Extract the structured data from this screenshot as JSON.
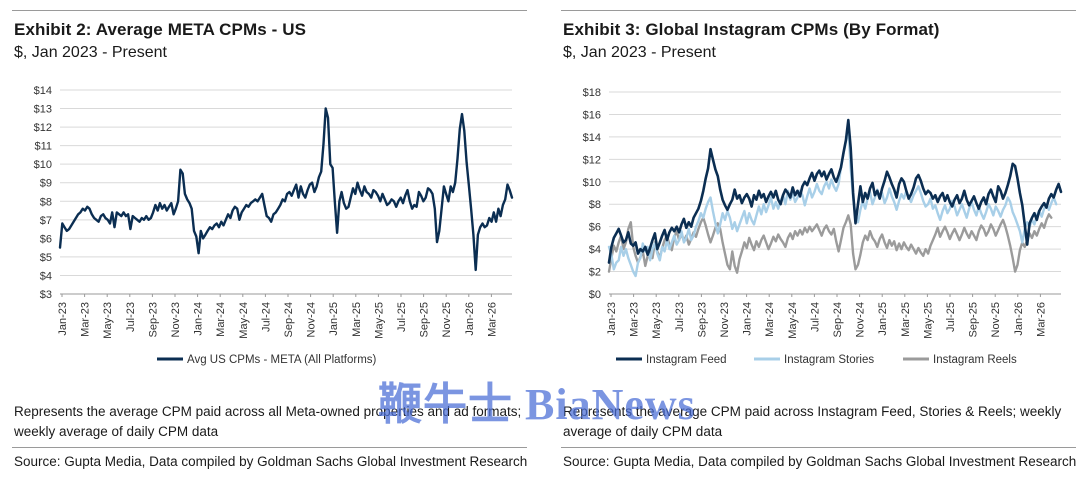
{
  "exhibits": [
    {
      "title": "Exhibit 2: Average META CPMs - US",
      "subtitle": "$, Jan 2023 - Present",
      "note": "Represents the average CPM paid across all Meta-owned properties and ad formats; weekly average of daily CPM data",
      "source": "Source: Gupta Media, Data compiled by Goldman Sachs Global Investment Research"
    },
    {
      "title": "Exhibit 3: Global Instagram CPMs (By Format)",
      "subtitle": "$, Jan 2023 - Present",
      "note": "Represents the average CPM paid across Instagram Feed, Stories & Reels; weekly average of daily CPM data",
      "source": "Source: Gupta Media, Data compiled by Goldman Sachs Global Investment Research"
    }
  ],
  "watermark": "鞭牛士 BiaNews",
  "chart_data": [
    {
      "type": "line",
      "ylim": [
        3,
        14
      ],
      "yticks": [
        "$3",
        "$4",
        "$5",
        "$6",
        "$7",
        "$8",
        "$9",
        "$10",
        "$11",
        "$12",
        "$13",
        "$14"
      ],
      "xticks": [
        "Jan-23",
        "Mar-23",
        "May-23",
        "Jul-23",
        "Sep-23",
        "Nov-23",
        "Jan-24",
        "Mar-24",
        "May-24",
        "Jul-24",
        "Sep-24",
        "Nov-24",
        "Jan-25",
        "Mar-25",
        "May-25",
        "Jul-25",
        "Sep-25",
        "Nov-25",
        "Jan-26",
        "Mar-26"
      ],
      "x_start": "2023-01",
      "x_step": "weekly",
      "grid": "horizontal",
      "legend_position": "bottom",
      "series": [
        {
          "name": "Avg US CPMs - META (All Platforms)",
          "color": "#0b2e52",
          "values": [
            5.5,
            6.8,
            6.6,
            6.4,
            6.5,
            6.7,
            6.9,
            7.1,
            7.3,
            7.4,
            7.6,
            7.5,
            7.7,
            7.6,
            7.3,
            7.1,
            7.0,
            6.9,
            7.2,
            7.3,
            7.1,
            7.0,
            6.8,
            7.4,
            6.6,
            7.4,
            7.3,
            7.2,
            7.4,
            7.2,
            7.3,
            6.5,
            7.2,
            7.1,
            7.0,
            6.9,
            7.1,
            7.0,
            7.2,
            7.0,
            7.1,
            7.4,
            7.8,
            7.5,
            7.9,
            7.6,
            7.8,
            7.5,
            7.7,
            7.9,
            7.3,
            7.6,
            8.0,
            9.7,
            9.5,
            8.4,
            8.1,
            7.9,
            7.6,
            6.4,
            6.1,
            5.2,
            6.4,
            6.0,
            6.2,
            6.4,
            6.6,
            6.5,
            6.7,
            6.8,
            6.6,
            6.9,
            6.7,
            7.0,
            7.3,
            7.1,
            7.5,
            7.7,
            7.6,
            7.0,
            7.4,
            7.6,
            7.8,
            7.7,
            7.9,
            8.0,
            8.1,
            8.0,
            8.2,
            8.4,
            7.8,
            7.2,
            7.1,
            6.9,
            7.3,
            7.4,
            7.6,
            7.8,
            8.1,
            8.0,
            8.4,
            8.5,
            8.3,
            8.6,
            8.9,
            8.2,
            8.8,
            8.4,
            8.2,
            8.6,
            8.9,
            9.0,
            8.5,
            8.8,
            9.3,
            9.6,
            11.1,
            13.0,
            12.5,
            10.0,
            9.8,
            8.0,
            6.3,
            8.0,
            8.5,
            7.9,
            7.6,
            7.7,
            8.2,
            8.7,
            8.4,
            9.0,
            8.6,
            8.3,
            8.8,
            8.5,
            8.4,
            8.2,
            8.6,
            8.5,
            8.3,
            8.0,
            8.4,
            8.1,
            7.8,
            7.9,
            8.1,
            8.0,
            7.7,
            8.0,
            8.2,
            7.9,
            8.3,
            8.6,
            8.0,
            7.6,
            7.8,
            7.7,
            8.5,
            8.3,
            8.0,
            8.2,
            8.7,
            8.6,
            8.4,
            7.6,
            5.8,
            6.4,
            7.6,
            8.8,
            8.4,
            8.0,
            8.8,
            8.5,
            9.0,
            10.3,
            11.9,
            12.7,
            11.8,
            10.1,
            8.9,
            7.6,
            6.2,
            4.3,
            6.2,
            6.6,
            6.8,
            6.6,
            6.7,
            7.1,
            6.9,
            7.4,
            6.9,
            7.6,
            7.2,
            7.8,
            8.1,
            8.9,
            8.6,
            8.2
          ]
        }
      ]
    },
    {
      "type": "line",
      "ylim": [
        0,
        18
      ],
      "yticks": [
        "$0",
        "$2",
        "$4",
        "$6",
        "$8",
        "$10",
        "$12",
        "$14",
        "$16",
        "$18"
      ],
      "xticks": [
        "Jan-23",
        "Mar-23",
        "May-23",
        "Jul-23",
        "Sep-23",
        "Nov-23",
        "Jan-24",
        "Mar-24",
        "May-24",
        "Jul-24",
        "Sep-24",
        "Nov-24",
        "Jan-25",
        "Mar-25",
        "May-25",
        "Jul-25",
        "Sep-25",
        "Nov-25",
        "Jan-26",
        "Mar-26"
      ],
      "x_start": "2023-01",
      "x_step": "weekly",
      "grid": "horizontal",
      "legend_position": "bottom",
      "series": [
        {
          "name": "Instagram Feed",
          "color": "#0b2e52",
          "values": [
            2.8,
            4.2,
            5.0,
            5.4,
            5.8,
            5.2,
            4.6,
            4.8,
            5.5,
            4.5,
            4.3,
            4.6,
            3.6,
            4.0,
            3.8,
            4.2,
            3.5,
            4.1,
            4.8,
            5.4,
            4.0,
            4.6,
            5.2,
            5.7,
            4.8,
            5.5,
            5.9,
            5.6,
            6.0,
            5.5,
            6.2,
            6.7,
            5.9,
            6.4,
            6.0,
            6.8,
            7.2,
            7.6,
            8.3,
            9.2,
            10.3,
            11.2,
            12.9,
            12.0,
            11.1,
            10.5,
            9.3,
            8.4,
            7.9,
            7.5,
            8.0,
            8.4,
            9.3,
            8.5,
            8.8,
            8.1,
            8.6,
            8.9,
            8.5,
            7.8,
            8.8,
            8.4,
            9.2,
            8.6,
            8.9,
            8.2,
            8.7,
            9.1,
            8.6,
            9.2,
            8.4,
            8.0,
            8.8,
            9.3,
            9.0,
            8.6,
            9.5,
            8.8,
            9.2,
            8.7,
            9.6,
            10.0,
            9.7,
            10.3,
            10.8,
            10.1,
            10.7,
            11.0,
            10.5,
            10.9,
            10.2,
            10.7,
            11.1,
            10.4,
            10.0,
            10.6,
            11.3,
            12.6,
            13.7,
            15.5,
            13.0,
            9.0,
            6.3,
            8.0,
            9.6,
            8.2,
            9.0,
            8.5,
            9.4,
            9.9,
            8.8,
            9.2,
            8.5,
            9.4,
            10.1,
            10.9,
            10.4,
            9.8,
            9.3,
            8.6,
            9.8,
            10.3,
            10.0,
            9.2,
            8.5,
            8.9,
            9.5,
            10.3,
            10.6,
            10.1,
            9.4,
            8.9,
            9.2,
            9.0,
            8.5,
            8.8,
            8.2,
            8.7,
            9.0,
            8.3,
            8.8,
            8.2,
            7.8,
            8.4,
            8.8,
            8.1,
            8.5,
            9.2,
            8.4,
            7.9,
            8.3,
            8.7,
            8.1,
            7.6,
            8.2,
            8.6,
            8.0,
            8.9,
            9.3,
            8.7,
            8.2,
            9.6,
            9.2,
            8.5,
            9.0,
            9.7,
            10.5,
            11.6,
            11.4,
            10.3,
            9.0,
            7.9,
            6.2,
            4.4,
            6.3,
            6.8,
            7.2,
            6.6,
            7.4,
            7.8,
            8.1,
            7.7,
            8.5,
            8.9,
            8.6,
            9.3,
            9.8,
            9.1
          ]
        },
        {
          "name": "Instagram Stories",
          "color": "#a8cfe8",
          "values": [
            4.2,
            3.5,
            2.2,
            2.8,
            3.0,
            4.2,
            3.4,
            4.0,
            3.2,
            2.6,
            2.0,
            1.6,
            2.8,
            3.2,
            4.5,
            3.8,
            4.2,
            3.0,
            4.0,
            4.5,
            3.6,
            3.0,
            4.2,
            3.8,
            4.8,
            4.0,
            4.6,
            5.2,
            4.4,
            4.8,
            5.6,
            4.6,
            5.0,
            5.8,
            4.8,
            5.2,
            6.0,
            6.5,
            7.2,
            6.8,
            7.6,
            8.2,
            8.6,
            7.4,
            6.3,
            5.4,
            6.2,
            7.2,
            6.6,
            7.4,
            6.8,
            5.8,
            6.4,
            5.6,
            6.2,
            6.8,
            7.4,
            6.3,
            7.2,
            6.6,
            6.2,
            7.0,
            7.8,
            7.1,
            8.0,
            7.3,
            7.9,
            8.6,
            7.6,
            8.2,
            7.6,
            8.3,
            8.8,
            8.0,
            9.2,
            8.4,
            9.0,
            8.2,
            8.6,
            9.2,
            8.8,
            7.9,
            8.7,
            9.4,
            8.6,
            9.1,
            9.8,
            9.2,
            8.9,
            9.6,
            10.0,
            9.4,
            10.2,
            9.6,
            9.2,
            9.8,
            11.3,
            12.5,
            13.6,
            14.8,
            11.2,
            8.6,
            7.0,
            6.4,
            7.5,
            8.3,
            7.6,
            8.5,
            9.1,
            8.0,
            8.6,
            9.3,
            8.5,
            9.0,
            8.1,
            8.6,
            9.4,
            8.7,
            8.2,
            7.5,
            8.3,
            8.9,
            8.5,
            9.2,
            8.6,
            8.2,
            8.8,
            9.2,
            9.6,
            9.0,
            8.3,
            7.8,
            8.0,
            8.5,
            7.6,
            7.9,
            7.2,
            6.6,
            7.4,
            7.9,
            7.2,
            7.6,
            8.3,
            7.8,
            7.0,
            7.5,
            8.0,
            7.4,
            6.8,
            7.6,
            8.2,
            7.5,
            7.0,
            7.8,
            7.2,
            6.7,
            7.3,
            8.0,
            7.6,
            7.0,
            7.8,
            7.4,
            6.9,
            7.5,
            7.9,
            8.6,
            8.2,
            7.3,
            6.8,
            6.2,
            5.6,
            4.6,
            5.8,
            6.4,
            6.0,
            6.6,
            6.2,
            7.0,
            7.4,
            6.9,
            7.6,
            8.0,
            7.5,
            8.1,
            8.6,
            8.0
          ]
        },
        {
          "name": "Instagram Reels",
          "color": "#9b9b9b",
          "values": [
            2.0,
            3.2,
            4.3,
            3.8,
            4.6,
            5.2,
            4.0,
            4.6,
            5.8,
            6.4,
            4.2,
            3.4,
            2.8,
            3.3,
            3.8,
            2.5,
            3.4,
            3.9,
            3.2,
            4.6,
            3.8,
            3.2,
            4.1,
            4.8,
            5.2,
            4.4,
            3.9,
            5.1,
            5.6,
            4.8,
            5.4,
            4.7,
            5.2,
            4.4,
            4.9,
            5.5,
            5.1,
            5.8,
            6.4,
            6.8,
            6.1,
            5.3,
            4.6,
            5.2,
            5.9,
            6.3,
            5.8,
            4.6,
            3.6,
            2.6,
            2.2,
            3.8,
            2.5,
            1.9,
            3.1,
            3.8,
            4.6,
            4.1,
            5.0,
            4.4,
            3.9,
            4.7,
            4.2,
            4.8,
            5.2,
            4.6,
            4.0,
            4.5,
            5.1,
            4.7,
            5.3,
            4.9,
            4.6,
            4.2,
            5.0,
            5.4,
            4.9,
            5.6,
            5.2,
            5.7,
            5.3,
            5.9,
            5.5,
            6.0,
            5.6,
            5.9,
            6.2,
            5.7,
            5.2,
            5.8,
            6.1,
            5.6,
            5.3,
            5.8,
            4.7,
            3.8,
            4.8,
            5.9,
            6.4,
            7.0,
            6.2,
            3.6,
            2.2,
            2.6,
            3.5,
            4.6,
            5.2,
            4.8,
            5.6,
            5.0,
            4.7,
            4.2,
            4.9,
            5.3,
            4.6,
            4.1,
            4.8,
            4.3,
            4.7,
            3.9,
            4.5,
            4.0,
            4.6,
            4.2,
            3.9,
            4.4,
            4.0,
            3.6,
            4.1,
            3.7,
            3.4,
            4.0,
            3.6,
            4.3,
            4.8,
            5.3,
            5.9,
            5.1,
            5.6,
            6.0,
            5.5,
            4.9,
            5.4,
            5.8,
            5.3,
            4.8,
            5.3,
            5.9,
            5.4,
            5.0,
            5.6,
            5.2,
            4.8,
            5.6,
            6.1,
            5.8,
            5.2,
            5.6,
            6.2,
            5.8,
            5.2,
            5.7,
            6.2,
            6.6,
            6.0,
            5.2,
            4.3,
            3.2,
            2.0,
            2.6,
            3.9,
            4.6,
            4.2,
            4.8,
            5.4,
            5.0,
            5.6,
            5.2,
            5.8,
            6.3,
            5.9,
            6.6,
            7.1,
            6.8
          ]
        }
      ]
    }
  ]
}
